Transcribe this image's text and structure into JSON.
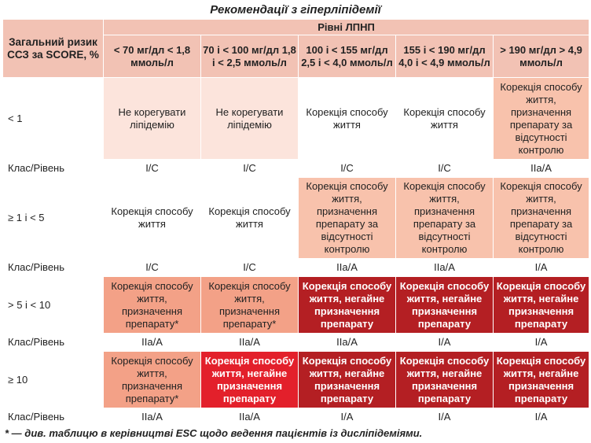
{
  "title": "Рекомендації з гіперліпідемії",
  "header": {
    "risk_label": "Загальний ризик ССЗ за SCORE, %",
    "ldl_label": "Рівні ЛПНП",
    "columns": [
      "< 70 мг/дл < 1,8 ммоль/л",
      "70 і < 100 мг/дл 1,8 і < 2,5 ммоль/л",
      "100 і < 155 мг/дл 2,5 і < 4,0 ммоль/л",
      "155 і < 190 мг/дл 4,0 і < 4,9 ммоль/л",
      "> 190 мг/дл > 4,9 ммоль/л"
    ]
  },
  "rows": [
    {
      "risk": "< 1",
      "cells": [
        "Не корегувати ліпідемію",
        "Не корегувати ліпідемію",
        "Корекція способу життя",
        "Корекція способу життя",
        "Корекція способу життя, призначення препарату за відсутності контролю"
      ],
      "class_label": "Клас/Рівень",
      "classes": [
        "I/C",
        "I/C",
        "I/C",
        "I/C",
        "IIa/A"
      ]
    },
    {
      "risk": "≥ 1 і < 5",
      "cells": [
        "Корекція способу життя",
        "Корекція способу життя",
        "Корекція способу життя, призначення препарату за відсутності контролю",
        "Корекція способу життя, призначення препарату за відсутності контролю",
        "Корекція способу життя, призначення препарату за відсутності контролю"
      ],
      "class_label": "Клас/Рівень",
      "classes": [
        "I/C",
        "I/C",
        "IIa/A",
        "IIa/A",
        "I/A"
      ]
    },
    {
      "risk": "> 5 і < 10",
      "cells": [
        "Корекція способу життя, призначення препарату*",
        "Корекція способу життя, призначення препарату*",
        "Корекція способу життя, негайне призначення препарату",
        "Корекція способу життя, негайне призначення препарату",
        "Корекція способу життя, негайне призначення препарату"
      ],
      "class_label": "Клас/Рівень",
      "classes": [
        "IIa/A",
        "IIa/A",
        "IIa/A",
        "I/A",
        "I/A"
      ]
    },
    {
      "risk": "≥ 10",
      "cells": [
        "Корекція способу життя, призначення препарату*",
        "Корекція способу життя, негайне призначення препарату",
        "Корекція способу життя, негайне призначення препарату",
        "Корекція способу життя, негайне призначення препарату",
        "Корекція способу життя, негайне призначення препарату"
      ],
      "class_label": "Клас/Рівень",
      "classes": [
        "IIa/A",
        "IIa/A",
        "I/A",
        "I/A",
        "I/A"
      ]
    }
  ],
  "footnote": "* — див. таблицю в керівництві ESC щодо ведення пацієнтів із дисліпідеміями.",
  "colors": {
    "header": "#f2c2b4",
    "light": "#fce4dc",
    "peach": "#f8c2ac",
    "salmon": "#f3a187",
    "red": "#e3202b",
    "dark_red": "#b41f23"
  }
}
